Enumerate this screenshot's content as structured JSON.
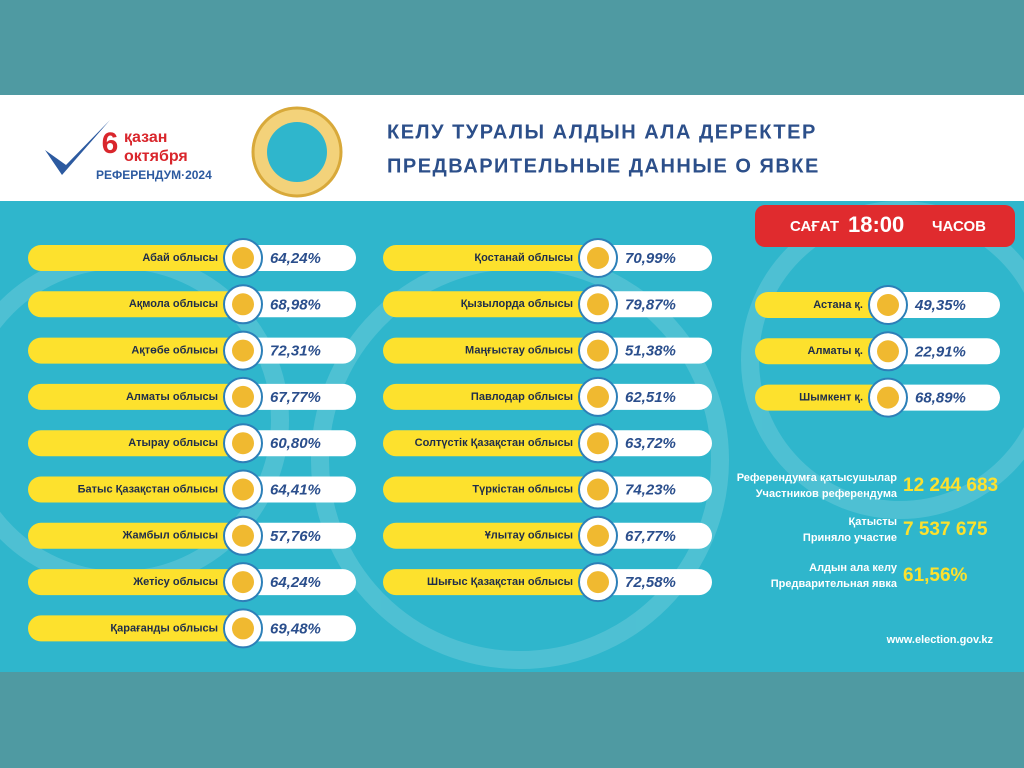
{
  "header": {
    "logo": {
      "day": "6",
      "line1": "қазан",
      "line2": "октября",
      "line3": "РЕФЕРЕНДУМ·2024"
    },
    "title": [
      "КЕЛУ ТУРАЛЫ АЛДЫН АЛА ДЕРЕКТЕР",
      "ПРЕДВАРИТЕЛЬНЫЕ ДАННЫЕ О ЯВКЕ"
    ]
  },
  "time_badge": {
    "prefix": "САҒАТ",
    "time": "18:00",
    "suffix": "ЧАСОВ"
  },
  "columns": [
    [
      {
        "name": "Абай облысы",
        "value": "64,24%"
      },
      {
        "name": "Ақмола облысы",
        "value": "68,98%"
      },
      {
        "name": "Ақтөбе облысы",
        "value": "72,31%"
      },
      {
        "name": "Алматы облысы",
        "value": "67,77%"
      },
      {
        "name": "Атырау  облысы",
        "value": "60,80%"
      },
      {
        "name": "Батыс Қазақстан облысы",
        "value": "64,41%"
      },
      {
        "name": "Жамбыл облысы",
        "value": "57,76%"
      },
      {
        "name": "Жетісу облысы",
        "value": "64,24%"
      },
      {
        "name": "Қарағанды облысы",
        "value": "69,48%"
      }
    ],
    [
      {
        "name": "Қостанай облысы",
        "value": "70,99%"
      },
      {
        "name": "Қызылорда облысы",
        "value": "79,87%"
      },
      {
        "name": "Маңғыстау облысы",
        "value": "51,38%"
      },
      {
        "name": "Павлодар облысы",
        "value": "62,51%"
      },
      {
        "name": "Солтүстік Қазақстан облысы",
        "value": "63,72%"
      },
      {
        "name": "Түркістан облысы",
        "value": "74,23%"
      },
      {
        "name": "Ұлытау облысы",
        "value": "67,77%"
      },
      {
        "name": "Шығыс Қазақстан облысы",
        "value": "72,58%"
      }
    ],
    [
      {
        "name": "Астана  қ.",
        "value": "49,35%"
      },
      {
        "name": "Алматы  қ.",
        "value": "22,91%"
      },
      {
        "name": "Шымкент қ.",
        "value": "68,89%"
      }
    ]
  ],
  "stats": [
    {
      "label": [
        "Референдумға қатысушылар",
        "Участников референдума"
      ],
      "value": "12 244 683"
    },
    {
      "label": [
        "Қатысты",
        "Приняло участие"
      ],
      "value": "7 537 675"
    },
    {
      "label": [
        "Алдын ала келу",
        "Предварительная явка"
      ],
      "value": "61,56%"
    }
  ],
  "footer": {
    "url": "www.election.gov.kz"
  }
}
